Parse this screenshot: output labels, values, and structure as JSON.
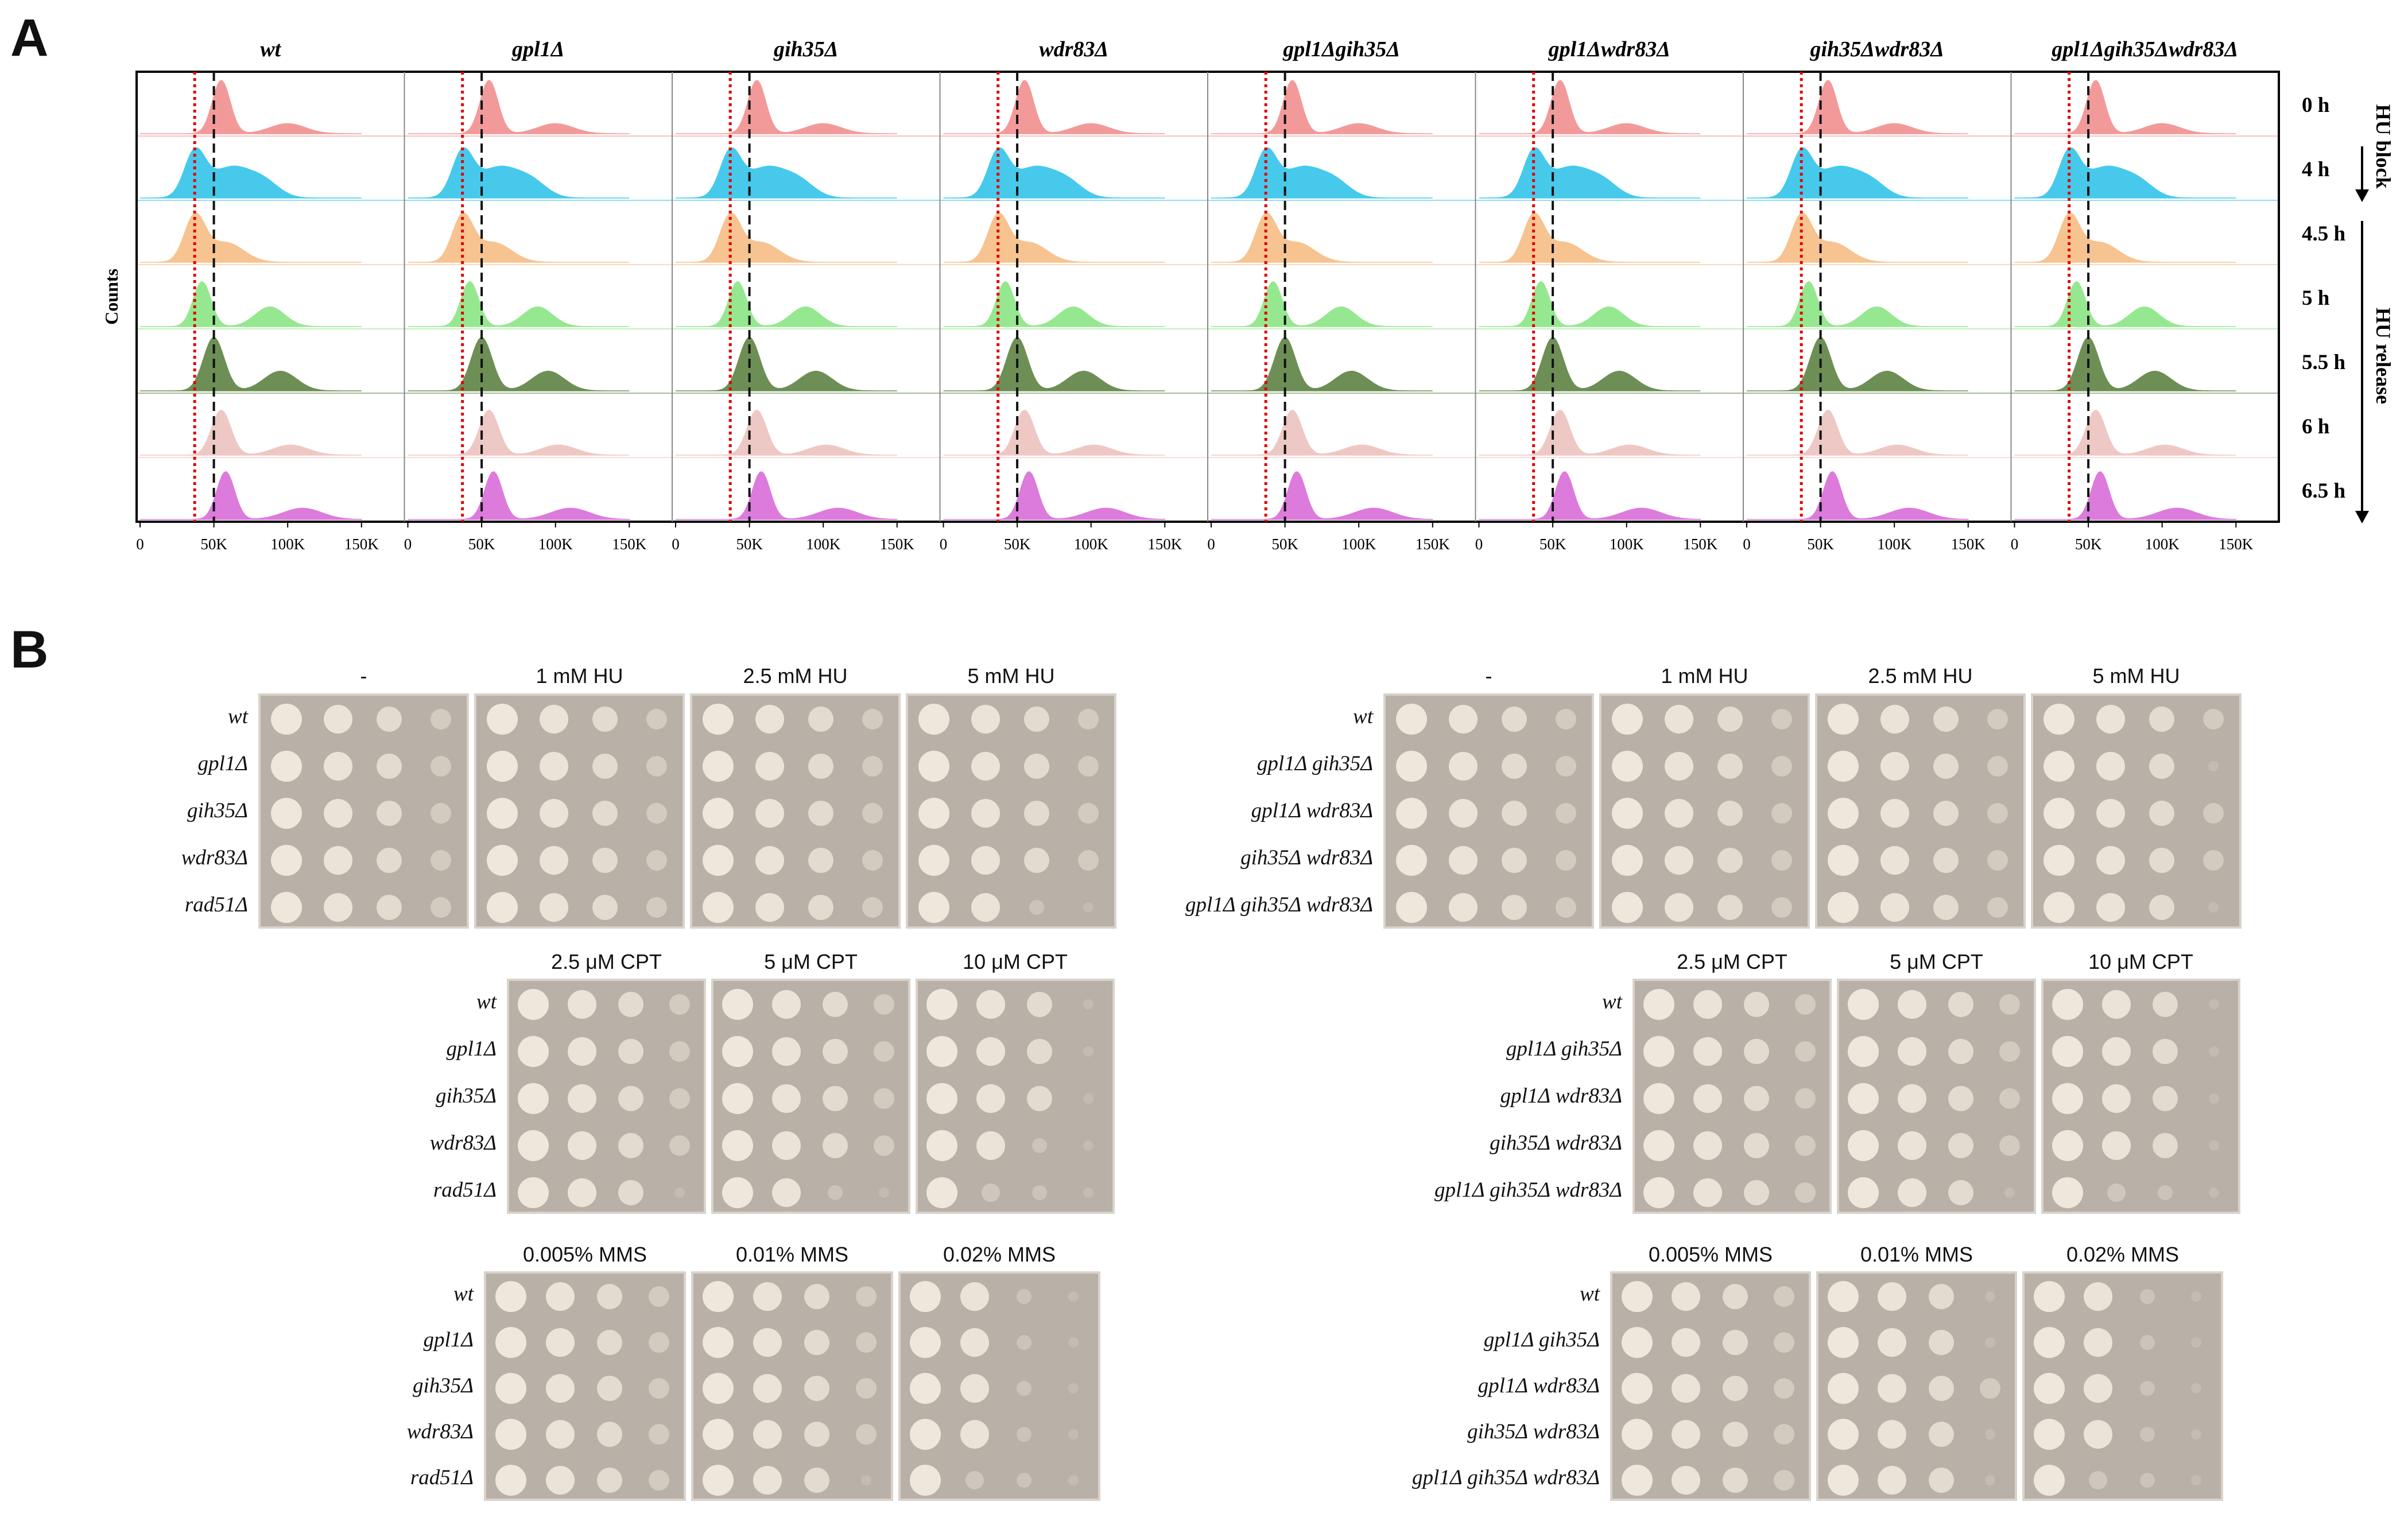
{
  "panels": {
    "a": "A",
    "b": "B"
  },
  "panelA": {
    "strains": [
      "wt",
      "gpl1Δ",
      "gih35Δ",
      "wdr83Δ",
      "gpl1Δgih35Δ",
      "gpl1Δwdr83Δ",
      "gih35Δwdr83Δ",
      "gpl1Δgih35Δwdr83Δ"
    ],
    "times": [
      "0 h",
      "4 h",
      "4.5 h",
      "5 h",
      "5.5 h",
      "6 h",
      "6.5 h"
    ],
    "ylabel": "Counts",
    "xticks": [
      "0",
      "50K",
      "100K",
      "150K"
    ],
    "side_labels": {
      "block": "HU block",
      "release": "HU release"
    },
    "row_colors": [
      "#f29a9a",
      "#47c9ec",
      "#f7c390",
      "#95e88f",
      "#6d8f55",
      "#eec8c4",
      "#dc7bdc"
    ]
  },
  "panelB": {
    "left_strains_hu": [
      "wt",
      "gpl1Δ",
      "gih35Δ",
      "wdr83Δ",
      "rad51Δ"
    ],
    "right_strains": [
      "wt",
      "gpl1Δ gih35Δ",
      "gpl1Δ wdr83Δ",
      "gih35Δ wdr83Δ",
      "gpl1Δ gih35Δ wdr83Δ"
    ],
    "hu_conditions": [
      "-",
      "1 mM HU",
      "2.5 mM HU",
      "5 mM HU"
    ],
    "cpt_conditions": [
      "2.5 μM CPT",
      "5 μM CPT",
      "10 μM CPT"
    ],
    "mms_conditions": [
      "0.005% MMS",
      "0.01% MMS",
      "0.02% MMS"
    ]
  }
}
